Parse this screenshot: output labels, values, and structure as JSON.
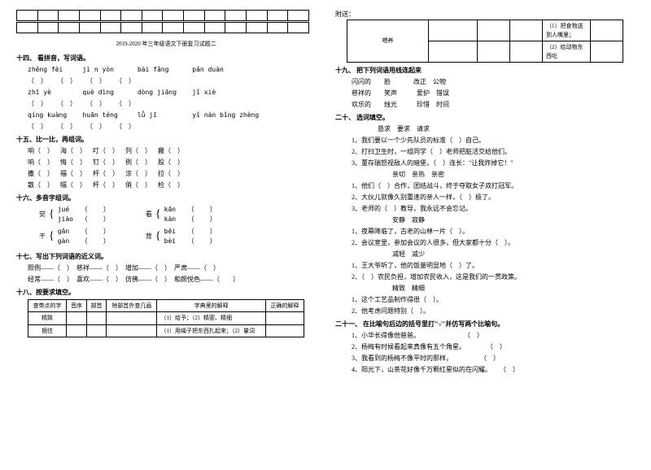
{
  "paper_title": "2019-2020 年三年级语文下册复习试题二",
  "left": {
    "s14": {
      "title": "十四、 看拼音，写词语。",
      "rows": [
        [
          "zhěng fèi",
          "jì n yòn",
          "bài fǎng",
          "pǎn duàn"
        ],
        [
          "zhī yè",
          "què dìng",
          "dòng jiāng",
          "jǐ xiè"
        ],
        [
          "qíng kuàng",
          "huān téng",
          "lǚ jī",
          "yǐ nán bǐng zhèng"
        ]
      ]
    },
    "s15": {
      "title": "十五、比一比，再组词。",
      "pairs": [
        [
          "响（    ）",
          "海（    ）",
          "叮（    ）",
          "列（    ）",
          "搬（    ）"
        ],
        [
          "响（    ）",
          "悔（    ）",
          "钉（    ）",
          "例（    ）",
          "股（    ）"
        ],
        [
          "撒（    ）",
          "福（    ）",
          "杆（    ）",
          "涂（    ）",
          "拉（    ）"
        ],
        [
          "散（    ）",
          "幅（    ）",
          "杆（    ）",
          "俏（    ）",
          "检（    ）"
        ]
      ]
    },
    "s16": {
      "title": "十六、多音字组词。",
      "items": [
        {
          "char": "觉",
          "a": "jué   （    ）",
          "b": "jiào  （    ）"
        },
        {
          "char": "看",
          "a": "kān   （    ）",
          "b": "kàn   （    ）"
        },
        {
          "char": "干",
          "a": "gān   （    ）",
          "b": "gàn   （    ）"
        },
        {
          "char": "背",
          "a": "bēi   （    ）",
          "b": "bèi   （    ）"
        }
      ]
    },
    "s17": {
      "title": "十七、写出下列词语的近义词。",
      "lines": [
        "照例——（    ）  慈祥——（    ）  增加——（    ）  严肃——（    ）",
        "经常——（    ）  喜欢——（    ）  仿佛——（    ）  和颜悦色——（        ）"
      ]
    },
    "s18": {
      "title": "十八、按要求填空。",
      "headers": [
        "查带点的字",
        "音序",
        "部首",
        "除部首外查几画",
        "字典里的解释",
        "正确的解释"
      ],
      "rows": [
        [
          "精致",
          "",
          "",
          "",
          "（1）给予；（2）精密、精细",
          ""
        ],
        [
          "捆住",
          "",
          "",
          "",
          "（1）用绳子把东西扎起来；（2）量词",
          ""
        ]
      ]
    }
  },
  "right": {
    "appendix": {
      "header": "附送：",
      "word": "喂养",
      "defs": [
        "（1）把食物送到人嘴里；",
        "（2）给动物东西吃"
      ]
    },
    "s19": {
      "title": "十九、 把下列词语用线连起来",
      "lines": [
        "闪闪的        脸              改正    公物",
        "慈祥的        笑声            爱护    错误",
        "欢乐的        烛光            珍惜    时间"
      ]
    },
    "s20": {
      "title": "二十、 选词填空。",
      "g1": {
        "words": "    恳求    要求    请求",
        "lines": [
          "1、我们要以一个少先队员的标准（    ）自己。",
          "2、打扫卫生时，一组同学（    ）老师把脏活交给他们。",
          "3、董存瑞怒视敌人的暗堡，（    ）连长：\"让我炸掉它！\""
        ]
      },
      "g2": {
        "words": "             亲切    亲热    亲密",
        "lines": [
          "1、他们（    ）合作，团结战斗，终于夺取女子双打冠军。",
          "2、大伙儿就像久别重逢的亲人一样，（    ）极了。",
          "3、老师的（    ）教导，我永远不会忘记。"
        ]
      },
      "g3": {
        "words": "             安静    寂静",
        "lines": [
          "1、夜幕降临了，古老的山林一片（    ）。",
          "2、会议室里，参加会议的人很多，但大家都十分（    ）。"
        ]
      },
      "g4": {
        "words": "             减轻    减少",
        "lines": [
          "1、王大爷听了，他的饭量明显地（    ）了。",
          "2、（    ）农民负担，增加农民收入，这是我们的一贯政策。"
        ]
      },
      "g5": {
        "words": "             精致    精细",
        "lines": [
          "1、这个工艺品制作得很（    ）。",
          "2、他考虑问题特别（    ）。"
        ]
      }
    },
    "s21": {
      "title": "二十一、 在比喻句后边的括号里打\"√\"并仿写两个比喻句。",
      "lines": [
        "1、小华长得像他爸爸。                           （    ）",
        "2、杨梅有时候看起来真像有五个角星。             （    ）",
        "3、我看到的杨梅不像平时的那样。                 （    ）",
        "4、阳光下，山茶花好像千万颗红星似的在闪耀。     （    ）"
      ]
    }
  }
}
